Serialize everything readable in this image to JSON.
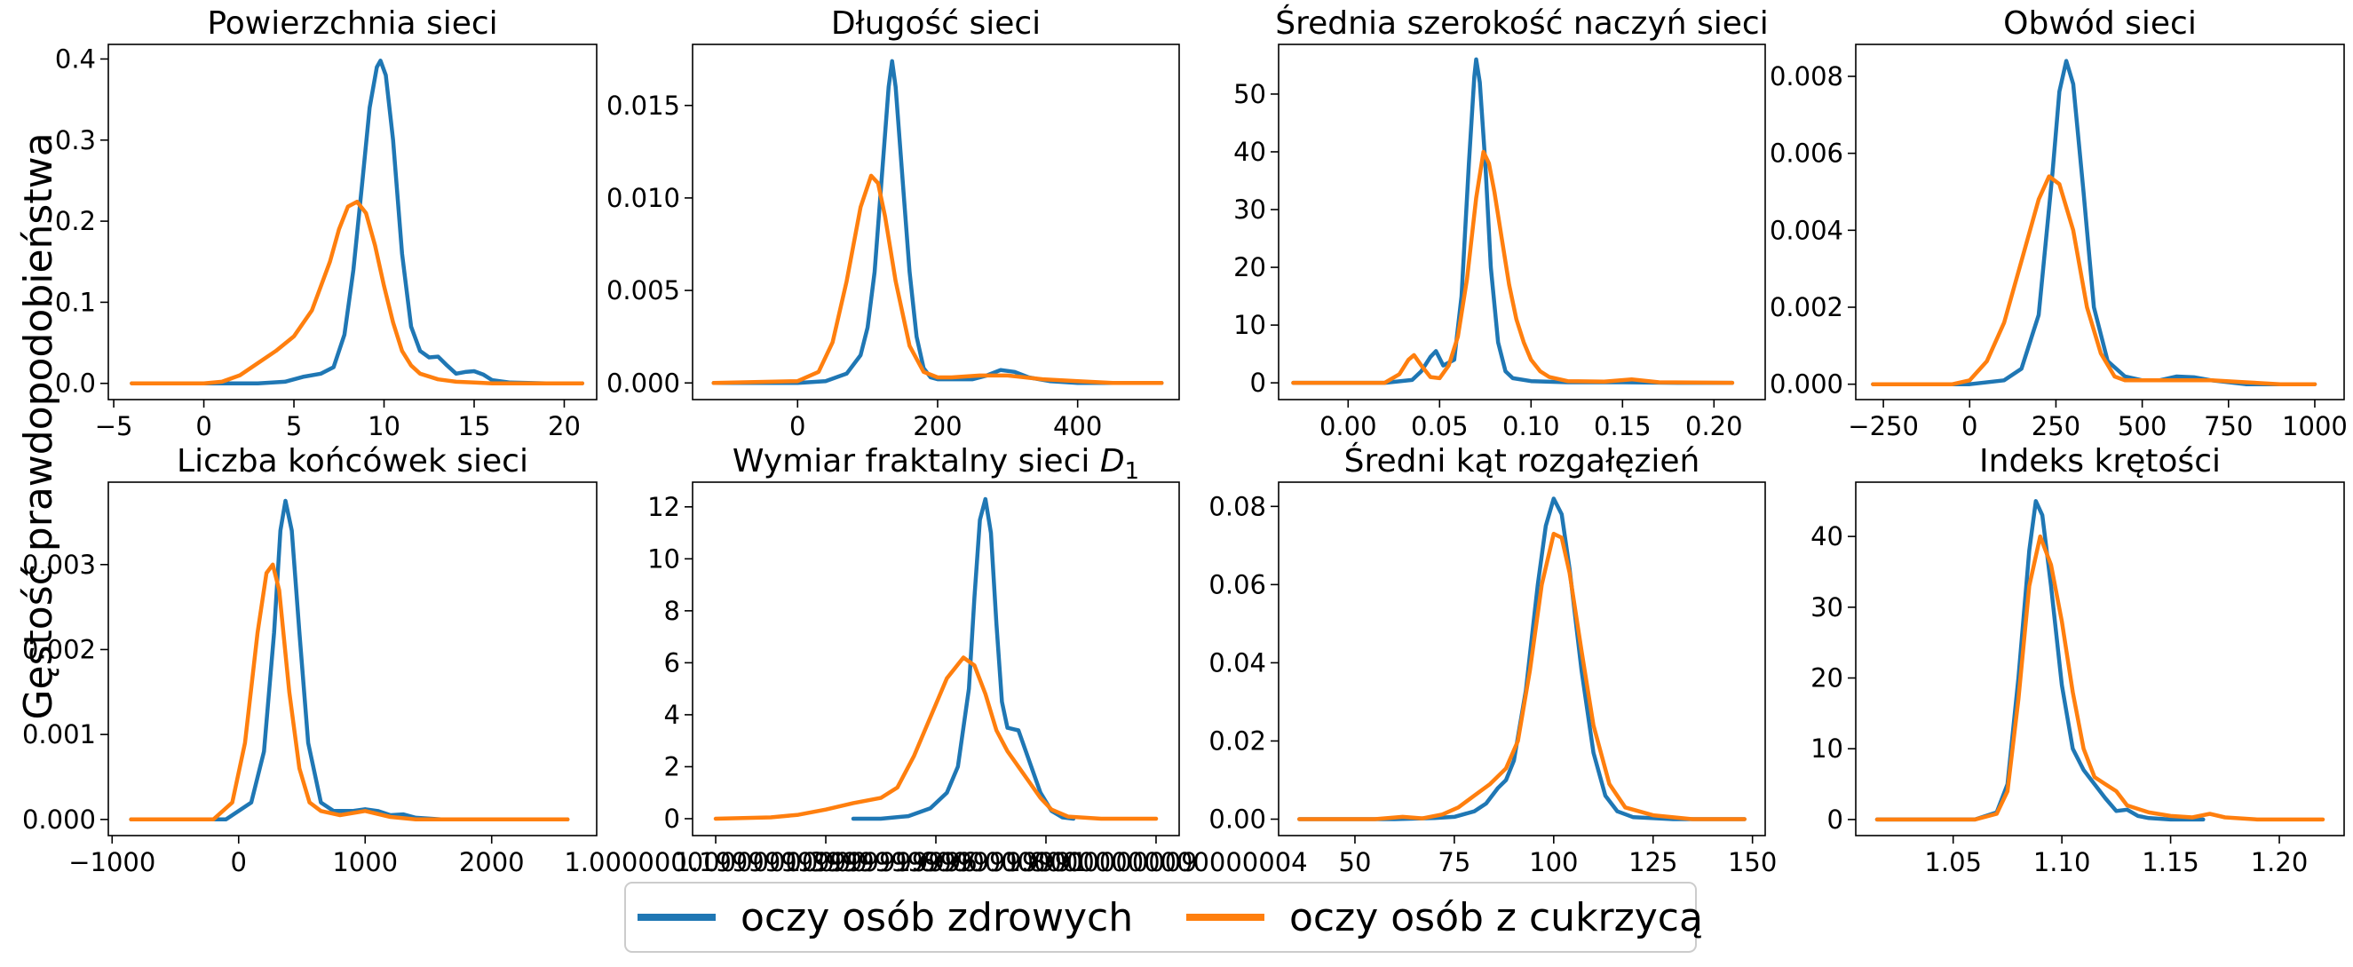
{
  "figure": {
    "ylabel": "Gęstość prawdopodobieństwa",
    "legend": {
      "placement": "bottom-center",
      "entries": [
        {
          "label": "oczy osób zdrowych",
          "color": "#1f77b4"
        },
        {
          "label": "oczy osób z cukrzycą",
          "color": "#ff7f0e"
        }
      ]
    }
  },
  "chart_data": [
    {
      "type": "line",
      "title": "Powierzchnia sieci",
      "xlim": [
        -5.3,
        21.8
      ],
      "ylim": [
        -0.02,
        0.418
      ],
      "xticks": [
        -5,
        0,
        5,
        10,
        15,
        20
      ],
      "yticks": [
        0.0,
        0.1,
        0.2,
        0.3,
        0.4
      ],
      "ytick_labels": [
        "0.0",
        "0.1",
        "0.2",
        "0.3",
        "0.4"
      ],
      "series": [
        {
          "name": "oczy osób zdrowych",
          "color": "#1f77b4",
          "x": [
            -4,
            0,
            3,
            4.5,
            5.5,
            6.5,
            7.2,
            7.8,
            8.3,
            8.8,
            9.2,
            9.6,
            9.8,
            10.1,
            10.5,
            11,
            11.5,
            12,
            12.5,
            13,
            13.5,
            14,
            14.5,
            15,
            15.5,
            16,
            17,
            19,
            21
          ],
          "y": [
            0,
            0,
            0,
            0.002,
            0.008,
            0.012,
            0.02,
            0.06,
            0.14,
            0.25,
            0.34,
            0.39,
            0.398,
            0.38,
            0.3,
            0.16,
            0.07,
            0.04,
            0.032,
            0.033,
            0.022,
            0.012,
            0.014,
            0.015,
            0.011,
            0.004,
            0.001,
            0,
            0
          ]
        },
        {
          "name": "oczy osób z cukrzycą",
          "color": "#ff7f0e",
          "x": [
            -4,
            0,
            1,
            2,
            3,
            4,
            5,
            6,
            7,
            7.5,
            8,
            8.5,
            9,
            9.5,
            10,
            10.5,
            11,
            11.5,
            12,
            13,
            14,
            15,
            16,
            17,
            19,
            21
          ],
          "y": [
            0,
            0,
            0.002,
            0.01,
            0.025,
            0.04,
            0.058,
            0.09,
            0.15,
            0.19,
            0.218,
            0.224,
            0.21,
            0.17,
            0.12,
            0.075,
            0.04,
            0.022,
            0.012,
            0.005,
            0.002,
            0.001,
            0,
            0,
            0,
            0
          ]
        }
      ]
    },
    {
      "type": "line",
      "title": "Długość sieci",
      "xlim": [
        -150,
        545
      ],
      "ylim": [
        -0.0009,
        0.0183
      ],
      "xticks": [
        0,
        200,
        400
      ],
      "yticks": [
        0,
        0.005,
        0.01,
        0.015
      ],
      "ytick_labels": [
        "0.000",
        "0.005",
        "0.010",
        "0.015"
      ],
      "series": [
        {
          "name": "oczy osób zdrowych",
          "color": "#1f77b4",
          "x": [
            -120,
            0,
            40,
            70,
            90,
            100,
            110,
            120,
            130,
            135,
            140,
            150,
            160,
            170,
            180,
            190,
            200,
            220,
            250,
            270,
            290,
            310,
            330,
            360,
            400,
            450,
            520
          ],
          "y": [
            0,
            0,
            0.0001,
            0.0005,
            0.0015,
            0.003,
            0.006,
            0.011,
            0.016,
            0.0174,
            0.016,
            0.011,
            0.006,
            0.0025,
            0.0008,
            0.0003,
            0.0002,
            0.0002,
            0.0002,
            0.0004,
            0.0007,
            0.0006,
            0.0003,
            0.0001,
            0,
            0,
            0
          ]
        },
        {
          "name": "oczy osób z cukrzycą",
          "color": "#ff7f0e",
          "x": [
            -120,
            0,
            30,
            50,
            70,
            90,
            105,
            115,
            125,
            140,
            160,
            180,
            200,
            220,
            260,
            300,
            350,
            400,
            450,
            520
          ],
          "y": [
            0,
            0.0001,
            0.0006,
            0.0022,
            0.0055,
            0.0095,
            0.0112,
            0.0108,
            0.009,
            0.0055,
            0.002,
            0.0006,
            0.0003,
            0.0003,
            0.0004,
            0.0004,
            0.0002,
            0.0001,
            0,
            0
          ]
        }
      ]
    },
    {
      "type": "line",
      "title": "Średnia szerokość naczyń sieci",
      "xlim": [
        -0.038,
        0.228
      ],
      "ylim": [
        -2.9,
        58.6
      ],
      "xticks": [
        0.0,
        0.05,
        0.1,
        0.15,
        0.2
      ],
      "yticks": [
        0,
        10,
        20,
        30,
        40,
        50
      ],
      "xtick_labels": [
        "0.00",
        "0.05",
        "0.10",
        "0.15",
        "0.20"
      ],
      "series": [
        {
          "name": "oczy osób zdrowych",
          "color": "#1f77b4",
          "x": [
            -0.03,
            0.02,
            0.035,
            0.04,
            0.045,
            0.048,
            0.052,
            0.058,
            0.062,
            0.066,
            0.069,
            0.07,
            0.072,
            0.075,
            0.078,
            0.082,
            0.086,
            0.09,
            0.1,
            0.12,
            0.15,
            0.18,
            0.21
          ],
          "y": [
            0,
            0,
            0.5,
            2,
            4.5,
            5.5,
            3,
            4,
            15,
            38,
            53,
            56,
            52,
            38,
            20,
            7,
            2,
            0.8,
            0.3,
            0.1,
            0.1,
            0,
            0
          ]
        },
        {
          "name": "oczy osób z cukrzycą",
          "color": "#ff7f0e",
          "x": [
            -0.03,
            0.02,
            0.028,
            0.033,
            0.036,
            0.04,
            0.045,
            0.05,
            0.055,
            0.06,
            0.065,
            0.07,
            0.074,
            0.077,
            0.08,
            0.084,
            0.088,
            0.092,
            0.096,
            0.1,
            0.105,
            0.11,
            0.12,
            0.14,
            0.155,
            0.17,
            0.21
          ],
          "y": [
            0,
            0,
            1.5,
            4,
            4.8,
            3,
            1,
            0.8,
            3,
            8,
            18,
            32,
            40,
            38,
            33,
            25,
            17,
            11,
            7,
            4,
            2,
            1,
            0.3,
            0.2,
            0.6,
            0.1,
            0
          ]
        }
      ]
    },
    {
      "type": "line",
      "title": "Obwód sieci",
      "xlim": [
        -330,
        1085
      ],
      "ylim": [
        -0.0004,
        0.00883
      ],
      "xticks": [
        -250,
        0,
        250,
        500,
        750,
        1000
      ],
      "yticks": [
        0,
        0.002,
        0.004,
        0.006,
        0.008
      ],
      "ytick_labels": [
        "0.000",
        "0.002",
        "0.004",
        "0.006",
        "0.008"
      ],
      "series": [
        {
          "name": "oczy osób zdrowych",
          "color": "#1f77b4",
          "x": [
            -280,
            0,
            100,
            150,
            200,
            240,
            260,
            280,
            300,
            330,
            360,
            400,
            450,
            500,
            550,
            600,
            650,
            700,
            800,
            1000
          ],
          "y": [
            0,
            0,
            0.0001,
            0.0004,
            0.0018,
            0.0055,
            0.0076,
            0.0084,
            0.0078,
            0.005,
            0.002,
            0.0006,
            0.0002,
            0.0001,
            0.0001,
            0.0002,
            0.00018,
            0.0001,
            0,
            0
          ]
        },
        {
          "name": "oczy osób z cukrzycą",
          "color": "#ff7f0e",
          "x": [
            -280,
            -50,
            0,
            50,
            100,
            150,
            200,
            230,
            260,
            300,
            340,
            380,
            420,
            450,
            500,
            600,
            700,
            800,
            900,
            1000
          ],
          "y": [
            0,
            0,
            0.0001,
            0.0006,
            0.0016,
            0.0032,
            0.0048,
            0.0054,
            0.0052,
            0.004,
            0.002,
            0.0008,
            0.0002,
            0.0001,
            0.0001,
            0.0001,
            0.0001,
            5e-05,
            0,
            0
          ]
        }
      ]
    },
    {
      "type": "line",
      "title": "Liczba końcówek sieci",
      "xlim": [
        -1030,
        2830
      ],
      "ylim": [
        -0.00019,
        0.00397
      ],
      "xticks": [
        -1000,
        0,
        1000,
        2000
      ],
      "yticks": [
        0,
        0.001,
        0.002,
        0.003
      ],
      "ytick_labels": [
        "0.000",
        "0.001",
        "0.002",
        "0.003"
      ],
      "series": [
        {
          "name": "oczy osób zdrowych",
          "color": "#1f77b4",
          "x": [
            -850,
            -100,
            100,
            200,
            280,
            330,
            370,
            420,
            480,
            550,
            650,
            750,
            900,
            1000,
            1100,
            1200,
            1300,
            1400,
            1600,
            2000,
            2600
          ],
          "y": [
            0,
            0,
            0.0002,
            0.0008,
            0.0022,
            0.0034,
            0.00375,
            0.0034,
            0.0022,
            0.0009,
            0.0002,
            0.0001,
            0.0001,
            0.00012,
            0.0001,
            5e-05,
            6e-05,
            2e-05,
            0,
            0,
            0
          ]
        },
        {
          "name": "oczy osób z cukrzycą",
          "color": "#ff7f0e",
          "x": [
            -850,
            -200,
            -50,
            50,
            150,
            220,
            270,
            320,
            400,
            480,
            560,
            650,
            800,
            1000,
            1200,
            1400,
            1800,
            2600
          ],
          "y": [
            0,
            0,
            0.0002,
            0.0009,
            0.0022,
            0.0029,
            0.003,
            0.0027,
            0.0015,
            0.0006,
            0.0002,
            0.0001,
            5e-05,
            0.0001,
            3e-05,
            0,
            0,
            0
          ]
        }
      ]
    },
    {
      "type": "line",
      "title": "Wymiar fraktalny sieci  D₁",
      "title_parts": [
        "Wymiar fraktalny sieci  ",
        "D",
        "1"
      ],
      "xlim": [
        0.958,
        1.842
      ],
      "ylim": [
        -0.65,
        12.95
      ],
      "xticks": [
        1.0,
        1.2,
        1.4,
        1.6,
        1.8
      ],
      "yticks": [
        0,
        2,
        4,
        6,
        8,
        10,
        12
      ],
      "series": [
        {
          "name": "oczy osób zdrowych",
          "color": "#1f77b4",
          "x": [
            1.25,
            1.3,
            1.35,
            1.39,
            1.42,
            1.44,
            1.46,
            1.47,
            1.48,
            1.49,
            1.5,
            1.51,
            1.52,
            1.53,
            1.55,
            1.57,
            1.59,
            1.61,
            1.63,
            1.65
          ],
          "y": [
            0,
            0,
            0.1,
            0.4,
            1.0,
            2.0,
            5,
            8.5,
            11.5,
            12.3,
            11,
            7.5,
            4.5,
            3.5,
            3.4,
            2.2,
            1.0,
            0.3,
            0.05,
            0
          ]
        },
        {
          "name": "oczy osób z cukrzycą",
          "color": "#ff7f0e",
          "x": [
            1.0,
            1.1,
            1.15,
            1.2,
            1.25,
            1.3,
            1.33,
            1.36,
            1.39,
            1.42,
            1.45,
            1.47,
            1.49,
            1.51,
            1.53,
            1.55,
            1.57,
            1.59,
            1.61,
            1.64,
            1.7,
            1.8
          ],
          "y": [
            0,
            0.05,
            0.15,
            0.35,
            0.6,
            0.8,
            1.2,
            2.4,
            3.9,
            5.4,
            6.2,
            5.9,
            4.8,
            3.4,
            2.6,
            2.0,
            1.4,
            0.8,
            0.35,
            0.08,
            0,
            0
          ]
        }
      ]
    },
    {
      "type": "line",
      "title": "Średni kąt rozgałęzień",
      "xlim": [
        30.8,
        153.2
      ],
      "ylim": [
        -0.0042,
        0.0862
      ],
      "xticks": [
        50,
        75,
        100,
        125,
        150
      ],
      "yticks": [
        0,
        0.02,
        0.04,
        0.06,
        0.08
      ],
      "ytick_labels": [
        "0.00",
        "0.02",
        "0.04",
        "0.06",
        "0.08"
      ],
      "series": [
        {
          "name": "oczy osób zdrowych",
          "color": "#1f77b4",
          "x": [
            36,
            60,
            70,
            75,
            80,
            83,
            86,
            88,
            90,
            93,
            96,
            98,
            100,
            102,
            104,
            107,
            110,
            113,
            116,
            120,
            130,
            148
          ],
          "y": [
            0,
            0,
            0.0003,
            0.0006,
            0.002,
            0.004,
            0.008,
            0.01,
            0.015,
            0.033,
            0.06,
            0.075,
            0.082,
            0.078,
            0.064,
            0.038,
            0.017,
            0.006,
            0.002,
            0.0005,
            0,
            0
          ]
        },
        {
          "name": "oczy osób z cukrzycą",
          "color": "#ff7f0e",
          "x": [
            36,
            55,
            62,
            67,
            72,
            76,
            80,
            84,
            88,
            91,
            94,
            97,
            100,
            102,
            104,
            107,
            110,
            114,
            118,
            125,
            135,
            148
          ],
          "y": [
            0,
            0,
            0.0006,
            0.0002,
            0.0012,
            0.003,
            0.006,
            0.009,
            0.013,
            0.02,
            0.038,
            0.06,
            0.073,
            0.072,
            0.063,
            0.043,
            0.024,
            0.009,
            0.003,
            0.001,
            0,
            0
          ]
        }
      ]
    },
    {
      "type": "line",
      "title": "Indeks krętości",
      "xlim": [
        1.0052,
        1.2298
      ],
      "ylim": [
        -2.27,
        47.67
      ],
      "xticks": [
        1.05,
        1.1,
        1.15,
        1.2
      ],
      "yticks": [
        0,
        10,
        20,
        30,
        40
      ],
      "xtick_labels": [
        "1.05",
        "1.10",
        "1.15",
        "1.20"
      ],
      "series": [
        {
          "name": "oczy osób zdrowych",
          "color": "#1f77b4",
          "x": [
            1.015,
            1.06,
            1.07,
            1.075,
            1.08,
            1.085,
            1.088,
            1.091,
            1.095,
            1.1,
            1.105,
            1.11,
            1.115,
            1.12,
            1.125,
            1.13,
            1.135,
            1.14,
            1.15,
            1.165
          ],
          "y": [
            0,
            0,
            1,
            5,
            20,
            38,
            45,
            43,
            33,
            19,
            10,
            7,
            5,
            3,
            1.2,
            1.4,
            0.5,
            0.2,
            0,
            0
          ]
        },
        {
          "name": "oczy osób z cukrzycą",
          "color": "#ff7f0e",
          "x": [
            1.015,
            1.06,
            1.07,
            1.075,
            1.08,
            1.085,
            1.09,
            1.095,
            1.1,
            1.105,
            1.11,
            1.115,
            1.12,
            1.125,
            1.13,
            1.14,
            1.15,
            1.16,
            1.168,
            1.175,
            1.19,
            1.22
          ],
          "y": [
            0,
            0,
            0.8,
            4,
            17,
            33,
            40,
            36,
            28,
            18,
            10,
            6,
            5,
            4,
            2,
            1,
            0.5,
            0.3,
            0.8,
            0.3,
            0,
            0
          ]
        }
      ]
    }
  ]
}
